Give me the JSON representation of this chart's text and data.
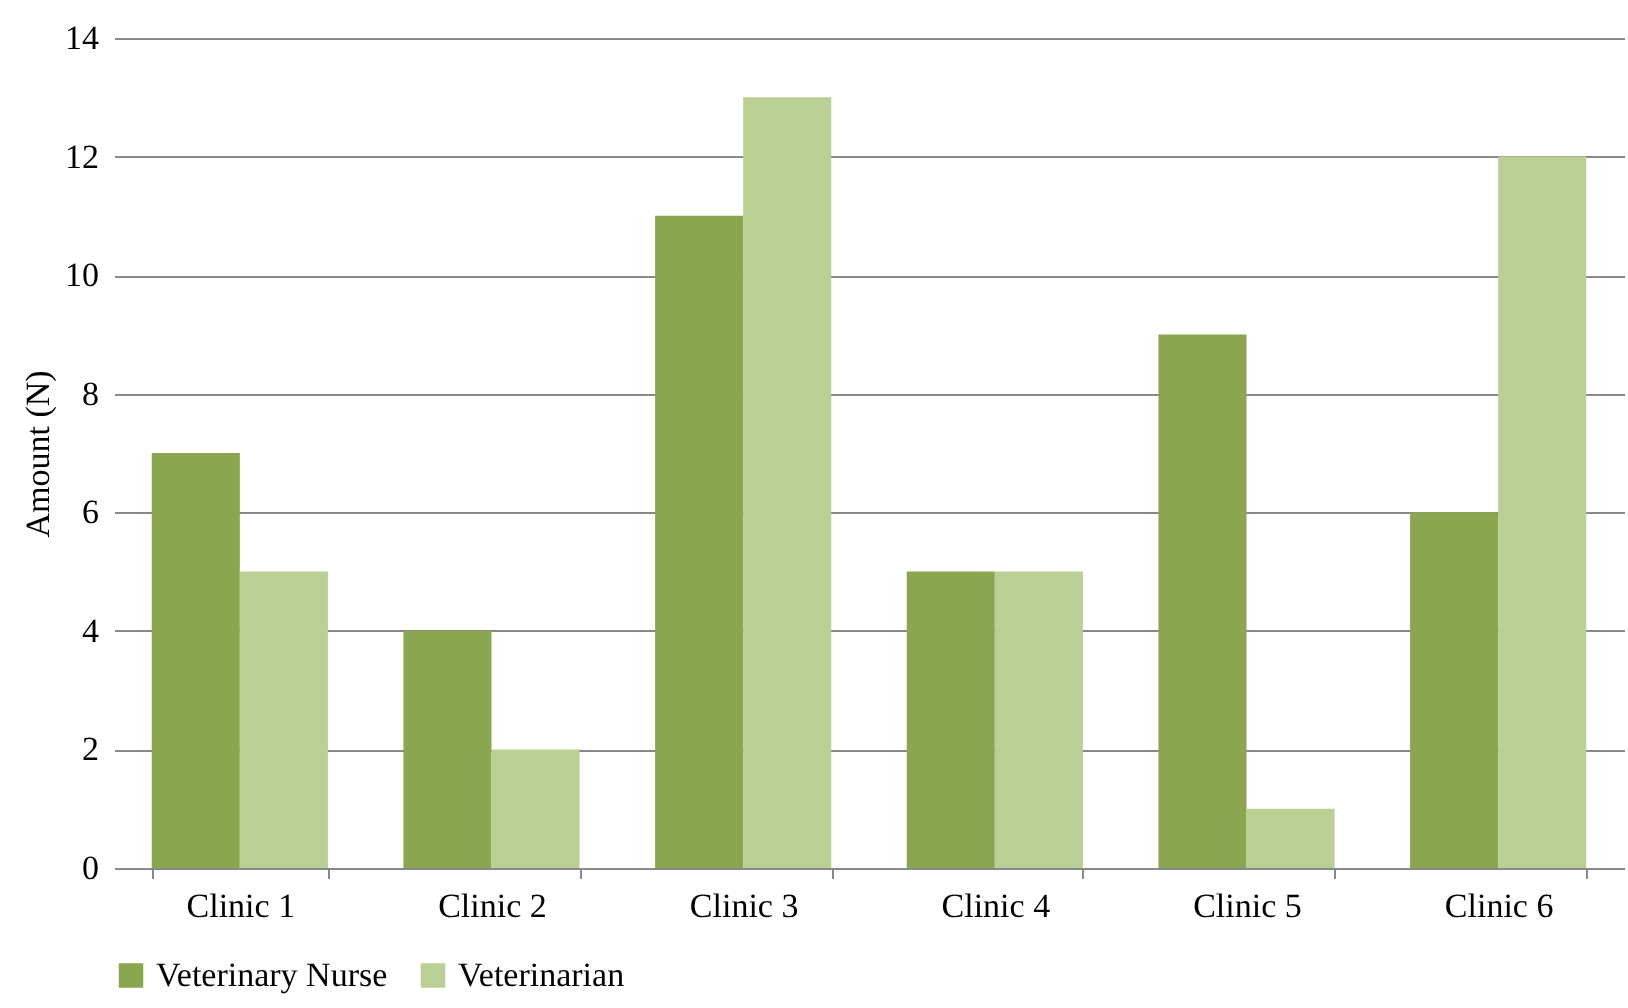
{
  "chart_data": {
    "type": "bar",
    "ylabel": "Amount (N)",
    "categories": [
      "Clinic 1",
      "Clinic 2",
      "Clinic 3",
      "Clinic 4",
      "Clinic 5",
      "Clinic 6"
    ],
    "series": [
      {
        "name": "Veterinary Nurse",
        "color": "#8aa64e",
        "values": [
          7,
          4,
          11,
          5,
          9,
          6
        ]
      },
      {
        "name": "Veterinarian",
        "color": "#b9cf94",
        "values": [
          5,
          2,
          13,
          5,
          1,
          12
        ]
      }
    ],
    "ylim": [
      0,
      14
    ],
    "yticks": [
      0,
      2,
      4,
      6,
      8,
      10,
      12,
      14
    ],
    "grid": "y",
    "legend": "bottom"
  }
}
